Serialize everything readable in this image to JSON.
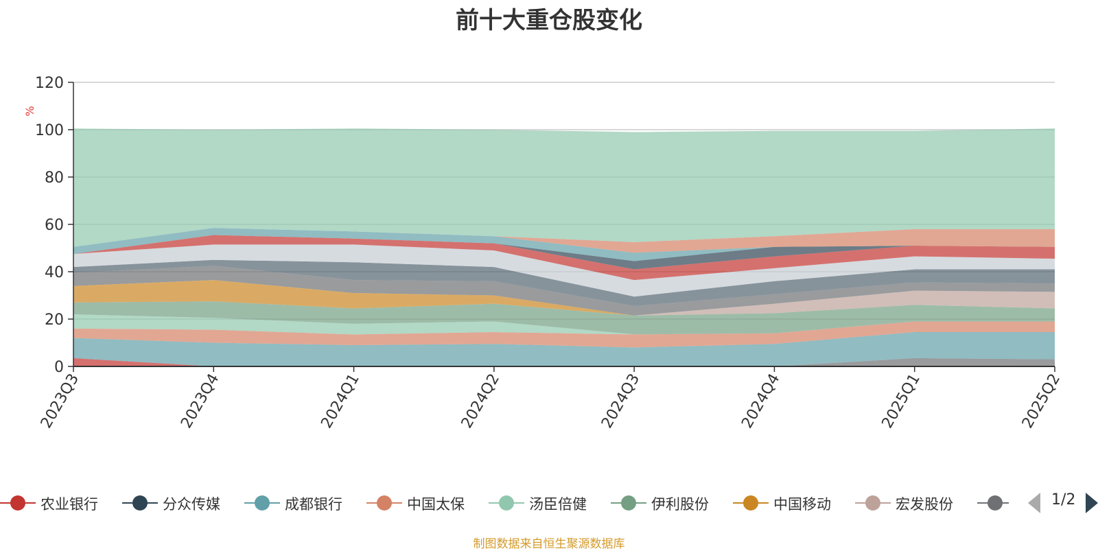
{
  "chart_data": {
    "type": "area",
    "stacked": true,
    "title": "前十大重仓股变化",
    "ylabel": "%",
    "ylim": [
      0,
      120
    ],
    "yticks": [
      0,
      20,
      40,
      60,
      80,
      100,
      120
    ],
    "grid": true,
    "categories": [
      "2023Q3",
      "2023Q4",
      "2024Q1",
      "2024Q2",
      "2024Q3",
      "2024Q4",
      "2025Q1",
      "2025Q2"
    ],
    "series": [
      {
        "name": "",
        "color": "#6e7074",
        "values": [
          0,
          0,
          0,
          0,
          0,
          0,
          3.5,
          3.0
        ]
      },
      {
        "name": "农业银行",
        "color": "#c23531",
        "values": [
          3.5,
          0,
          0,
          0,
          0,
          0,
          0,
          0
        ]
      },
      {
        "name": "成都银行",
        "color": "#61a0a8",
        "values": [
          8.5,
          10.0,
          9.0,
          9.5,
          8.0,
          9.5,
          11.0,
          11.5
        ]
      },
      {
        "name": "中国太保",
        "color": "#d48265",
        "values": [
          4.0,
          5.5,
          4.5,
          5.0,
          5.5,
          4.5,
          4.5,
          4.5
        ]
      },
      {
        "name": "汤臣倍健",
        "color": "#91c7ae",
        "values": [
          6.0,
          5.0,
          4.5,
          4.5,
          0,
          0,
          0,
          0
        ]
      },
      {
        "name": "伊利股份",
        "color": "#749f83",
        "values": [
          5.0,
          7.0,
          6.5,
          7.5,
          8.0,
          8.5,
          7.0,
          5.5
        ]
      },
      {
        "name": "中国移动",
        "color": "#ca8622",
        "values": [
          7.0,
          9.0,
          6.5,
          3.5,
          0,
          0,
          0,
          0
        ]
      },
      {
        "name": "宏发股份",
        "color": "#bda29a",
        "values": [
          0,
          0,
          0,
          0,
          0,
          4.0,
          6.0,
          7.0
        ]
      },
      {
        "name": "",
        "color": "#6e7074",
        "values": [
          5.5,
          6.0,
          5.5,
          6.0,
          4.0,
          4.0,
          3.5,
          3.5
        ]
      },
      {
        "name": "",
        "color": "#546570",
        "values": [
          2.5,
          2.5,
          7.5,
          6.0,
          4.0,
          5.5,
          5.5,
          6.0
        ]
      },
      {
        "name": "",
        "color": "#c4ccd3",
        "values": [
          5.5,
          6.5,
          7.5,
          7.0,
          7.0,
          5.5,
          5.5,
          4.5
        ]
      },
      {
        "name": "",
        "color": "#c23531",
        "values": [
          0,
          4.0,
          2.5,
          3.0,
          4.5,
          5.0,
          4.5,
          5.0
        ]
      },
      {
        "name": "",
        "color": "#2f4554",
        "values": [
          0,
          0,
          0,
          0,
          3.5,
          4.0,
          0,
          0
        ]
      },
      {
        "name": "",
        "color": "#61a0a8",
        "values": [
          3.0,
          3.0,
          3.0,
          3.0,
          3.5,
          0,
          0,
          0
        ]
      },
      {
        "name": "",
        "color": "#d48265",
        "values": [
          0,
          0,
          0,
          0,
          4.5,
          4.5,
          7.0,
          7.5
        ]
      },
      {
        "name": "",
        "color": "#91c7ae",
        "values": [
          50.0,
          41.5,
          43.5,
          45.0,
          46.5,
          44.5,
          41.5,
          42.5
        ]
      }
    ]
  },
  "legend": {
    "items": [
      {
        "label": "农业银行",
        "color": "#c23531"
      },
      {
        "label": "分众传媒",
        "color": "#2f4554"
      },
      {
        "label": "成都银行",
        "color": "#61a0a8"
      },
      {
        "label": "中国太保",
        "color": "#d48265"
      },
      {
        "label": "汤臣倍健",
        "color": "#91c7ae"
      },
      {
        "label": "伊利股份",
        "color": "#749f83"
      },
      {
        "label": "中国移动",
        "color": "#ca8622"
      },
      {
        "label": "宏发股份",
        "color": "#bda29a"
      },
      {
        "label": "",
        "color": "#6e7074"
      }
    ],
    "page": "1/2"
  },
  "source_note": "制图数据来自恒生聚源数据库"
}
